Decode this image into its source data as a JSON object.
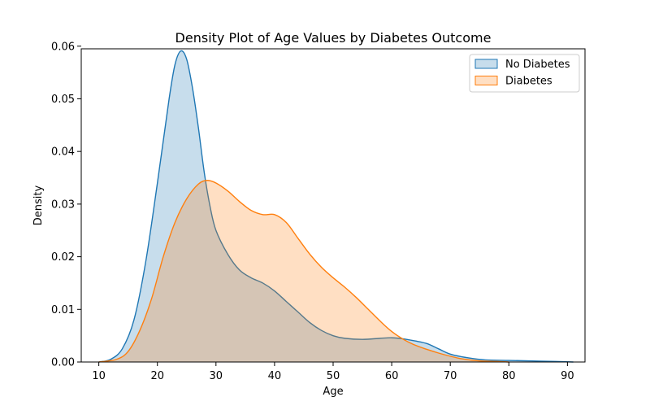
{
  "chart_data": {
    "type": "area",
    "title": "Density Plot of Age Values by Diabetes Outcome",
    "xlabel": "Age",
    "ylabel": "Density",
    "xlim": [
      7,
      93
    ],
    "ylim": [
      0,
      0.0595
    ],
    "x_ticks": [
      10,
      20,
      30,
      40,
      50,
      60,
      70,
      80,
      90
    ],
    "x_tick_labels": [
      "10",
      "20",
      "30",
      "40",
      "50",
      "60",
      "70",
      "80",
      "90"
    ],
    "y_ticks": [
      0.0,
      0.01,
      0.02,
      0.03,
      0.04,
      0.05,
      0.06
    ],
    "y_tick_labels": [
      "0.00",
      "0.01",
      "0.02",
      "0.03",
      "0.04",
      "0.05",
      "0.06"
    ],
    "grid": false,
    "legend_position": "top-right",
    "series": [
      {
        "name": "No Diabetes",
        "color": "#1f77b4",
        "fill_opacity": 0.25,
        "x": [
          10,
          12,
          14,
          16,
          18,
          20,
          22,
          23,
          24,
          25,
          26,
          27,
          28,
          29,
          30,
          32,
          34,
          36,
          38,
          40,
          42,
          44,
          46,
          48,
          50,
          52,
          55,
          58,
          60,
          62,
          64,
          66,
          68,
          70,
          73,
          76,
          80,
          84,
          88,
          91
        ],
        "y": [
          0.0,
          0.0005,
          0.0025,
          0.008,
          0.019,
          0.034,
          0.05,
          0.0565,
          0.0591,
          0.0575,
          0.052,
          0.0445,
          0.036,
          0.0295,
          0.025,
          0.0205,
          0.0175,
          0.016,
          0.015,
          0.0135,
          0.0115,
          0.0095,
          0.0075,
          0.006,
          0.005,
          0.0045,
          0.0043,
          0.0045,
          0.0046,
          0.0044,
          0.004,
          0.0035,
          0.0025,
          0.0015,
          0.0008,
          0.0004,
          0.0003,
          0.0002,
          0.0001,
          0.0
        ]
      },
      {
        "name": "Diabetes",
        "color": "#ff7f0e",
        "fill_opacity": 0.25,
        "x": [
          10,
          13,
          15,
          17,
          19,
          21,
          23,
          25,
          27,
          28.5,
          30,
          32,
          34,
          36,
          38,
          40,
          42,
          44,
          46,
          48,
          50,
          52,
          54,
          56,
          58,
          60,
          62,
          64,
          66,
          68,
          70,
          72,
          75,
          78,
          80
        ],
        "y": [
          0.0,
          0.0005,
          0.002,
          0.006,
          0.012,
          0.02,
          0.0265,
          0.031,
          0.0338,
          0.0345,
          0.034,
          0.0325,
          0.0305,
          0.0288,
          0.028,
          0.028,
          0.0265,
          0.0235,
          0.0205,
          0.018,
          0.016,
          0.0142,
          0.0122,
          0.01,
          0.0078,
          0.0058,
          0.0043,
          0.0032,
          0.0024,
          0.0017,
          0.0011,
          0.0006,
          0.0002,
          0.0001,
          0.0
        ]
      }
    ]
  }
}
